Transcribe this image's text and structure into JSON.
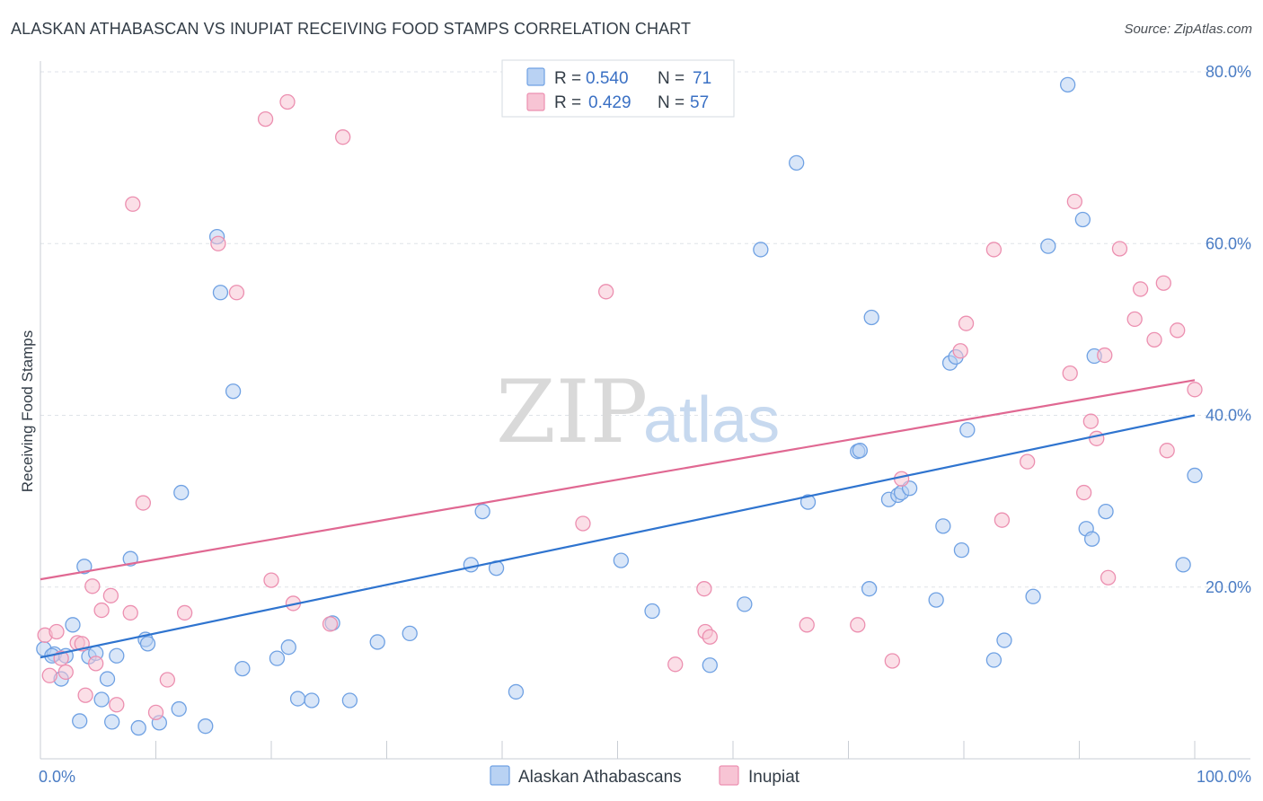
{
  "title": "ALASKAN ATHABASCAN VS INUPIAT RECEIVING FOOD STAMPS CORRELATION CHART",
  "source": "Source: ZipAtlas.com",
  "colors": {
    "blue": "#6fa1e3",
    "blue_fill": "#b9d2f3",
    "blue_line": "#2f74cf",
    "pink": "#ec8fb0",
    "pink_fill": "#f7c4d4",
    "pink_line": "#e06892",
    "grid": "#dfe3e8",
    "tick_text": "#4a7cc4"
  },
  "legend": {
    "rows": [
      {
        "r_label": "R =",
        "r_value": "0.540",
        "n_label": "N =",
        "n_value": "71"
      },
      {
        "r_label": "R =",
        "r_value": "0.429",
        "n_label": "N =",
        "n_value": "57"
      }
    ]
  },
  "watermark": {
    "zip": "ZIP",
    "atlas": "atlas"
  },
  "chart_data": {
    "type": "scatter",
    "title": "ALASKAN ATHABASCAN VS INUPIAT RECEIVING FOOD STAMPS CORRELATION CHART",
    "xlabel": "",
    "ylabel": "Receiving Food Stamps",
    "xlim": [
      0,
      100
    ],
    "ylim": [
      0,
      80
    ],
    "x_ticks": [
      "0.0%",
      "100.0%"
    ],
    "y_ticks": [
      "20.0%",
      "40.0%",
      "60.0%",
      "80.0%"
    ],
    "y_tick_values": [
      20,
      40,
      60,
      80
    ],
    "grid": true,
    "legend_position": "top-center",
    "series": [
      {
        "name": "Alaskan Athabascans",
        "r": 0.54,
        "n": 71,
        "trend": {
          "x": [
            0,
            100
          ],
          "y": [
            11.8,
            40.0
          ]
        },
        "points": [
          [
            0.3,
            12.8
          ],
          [
            1.2,
            12.2
          ],
          [
            1.8,
            9.3
          ],
          [
            2.2,
            12.0
          ],
          [
            2.8,
            15.6
          ],
          [
            3.4,
            4.4
          ],
          [
            3.8,
            22.4
          ],
          [
            4.2,
            11.9
          ],
          [
            4.8,
            12.3
          ],
          [
            5.3,
            6.9
          ],
          [
            5.8,
            9.3
          ],
          [
            6.2,
            4.3
          ],
          [
            6.6,
            12.0
          ],
          [
            7.8,
            23.3
          ],
          [
            8.5,
            3.6
          ],
          [
            9.1,
            13.9
          ],
          [
            9.3,
            13.4
          ],
          [
            10.3,
            4.2
          ],
          [
            12.0,
            5.8
          ],
          [
            12.2,
            31.0
          ],
          [
            14.3,
            3.8
          ],
          [
            15.3,
            60.8
          ],
          [
            15.6,
            54.3
          ],
          [
            16.7,
            42.8
          ],
          [
            17.5,
            10.5
          ],
          [
            20.5,
            11.7
          ],
          [
            21.5,
            13.0
          ],
          [
            22.3,
            7.0
          ],
          [
            23.5,
            6.8
          ],
          [
            25.3,
            15.8
          ],
          [
            26.8,
            6.8
          ],
          [
            29.2,
            13.6
          ],
          [
            32.0,
            14.6
          ],
          [
            37.3,
            22.6
          ],
          [
            38.3,
            28.8
          ],
          [
            39.5,
            22.2
          ],
          [
            41.2,
            7.8
          ],
          [
            50.3,
            23.1
          ],
          [
            53.0,
            17.2
          ],
          [
            58.0,
            10.9
          ],
          [
            61.0,
            18.0
          ],
          [
            62.4,
            59.3
          ],
          [
            65.5,
            69.4
          ],
          [
            66.5,
            29.9
          ],
          [
            70.8,
            35.8
          ],
          [
            71.0,
            35.9
          ],
          [
            71.8,
            19.8
          ],
          [
            72.0,
            51.4
          ],
          [
            73.5,
            30.2
          ],
          [
            74.3,
            30.7
          ],
          [
            74.6,
            31.0
          ],
          [
            75.3,
            31.5
          ],
          [
            77.6,
            18.5
          ],
          [
            78.2,
            27.1
          ],
          [
            78.8,
            46.1
          ],
          [
            79.3,
            46.8
          ],
          [
            79.8,
            24.3
          ],
          [
            80.3,
            38.3
          ],
          [
            82.6,
            11.5
          ],
          [
            83.5,
            13.8
          ],
          [
            86.0,
            18.9
          ],
          [
            87.3,
            59.7
          ],
          [
            89.0,
            78.5
          ],
          [
            90.3,
            62.8
          ],
          [
            90.6,
            26.8
          ],
          [
            91.1,
            25.6
          ],
          [
            91.3,
            46.9
          ],
          [
            92.3,
            28.8
          ],
          [
            99.0,
            22.6
          ],
          [
            100.0,
            33.0
          ],
          [
            1.0,
            12.0
          ]
        ]
      },
      {
        "name": "Inupiat",
        "r": 0.429,
        "n": 57,
        "trend": {
          "x": [
            0,
            100
          ],
          "y": [
            20.9,
            44.1
          ]
        },
        "points": [
          [
            0.4,
            14.4
          ],
          [
            0.8,
            9.7
          ],
          [
            1.4,
            14.8
          ],
          [
            1.8,
            11.7
          ],
          [
            2.2,
            10.1
          ],
          [
            3.2,
            13.5
          ],
          [
            3.6,
            13.4
          ],
          [
            3.9,
            7.4
          ],
          [
            4.5,
            20.1
          ],
          [
            4.8,
            11.1
          ],
          [
            5.3,
            17.3
          ],
          [
            6.1,
            19.0
          ],
          [
            6.6,
            6.3
          ],
          [
            7.8,
            17.0
          ],
          [
            8.0,
            64.6
          ],
          [
            8.9,
            29.8
          ],
          [
            10.0,
            5.4
          ],
          [
            11.0,
            9.2
          ],
          [
            12.5,
            17.0
          ],
          [
            15.4,
            60.0
          ],
          [
            17.0,
            54.3
          ],
          [
            19.5,
            74.5
          ],
          [
            20.0,
            20.8
          ],
          [
            21.4,
            76.5
          ],
          [
            21.9,
            18.1
          ],
          [
            25.1,
            15.7
          ],
          [
            26.2,
            72.4
          ],
          [
            47.0,
            27.4
          ],
          [
            49.0,
            54.4
          ],
          [
            55.0,
            11.0
          ],
          [
            57.5,
            19.8
          ],
          [
            57.6,
            14.8
          ],
          [
            58.0,
            14.2
          ],
          [
            66.4,
            15.6
          ],
          [
            70.8,
            15.6
          ],
          [
            73.8,
            11.4
          ],
          [
            74.6,
            32.6
          ],
          [
            79.7,
            47.5
          ],
          [
            80.2,
            50.7
          ],
          [
            82.6,
            59.3
          ],
          [
            83.3,
            27.8
          ],
          [
            85.5,
            34.6
          ],
          [
            89.2,
            44.9
          ],
          [
            89.6,
            64.9
          ],
          [
            90.4,
            31.0
          ],
          [
            91.0,
            39.3
          ],
          [
            91.5,
            37.3
          ],
          [
            92.2,
            47.0
          ],
          [
            92.5,
            21.1
          ],
          [
            93.5,
            59.4
          ],
          [
            94.8,
            51.2
          ],
          [
            95.3,
            54.7
          ],
          [
            96.5,
            48.8
          ],
          [
            97.3,
            55.4
          ],
          [
            97.6,
            35.9
          ],
          [
            98.5,
            49.9
          ],
          [
            100.0,
            43.0
          ]
        ]
      }
    ]
  }
}
